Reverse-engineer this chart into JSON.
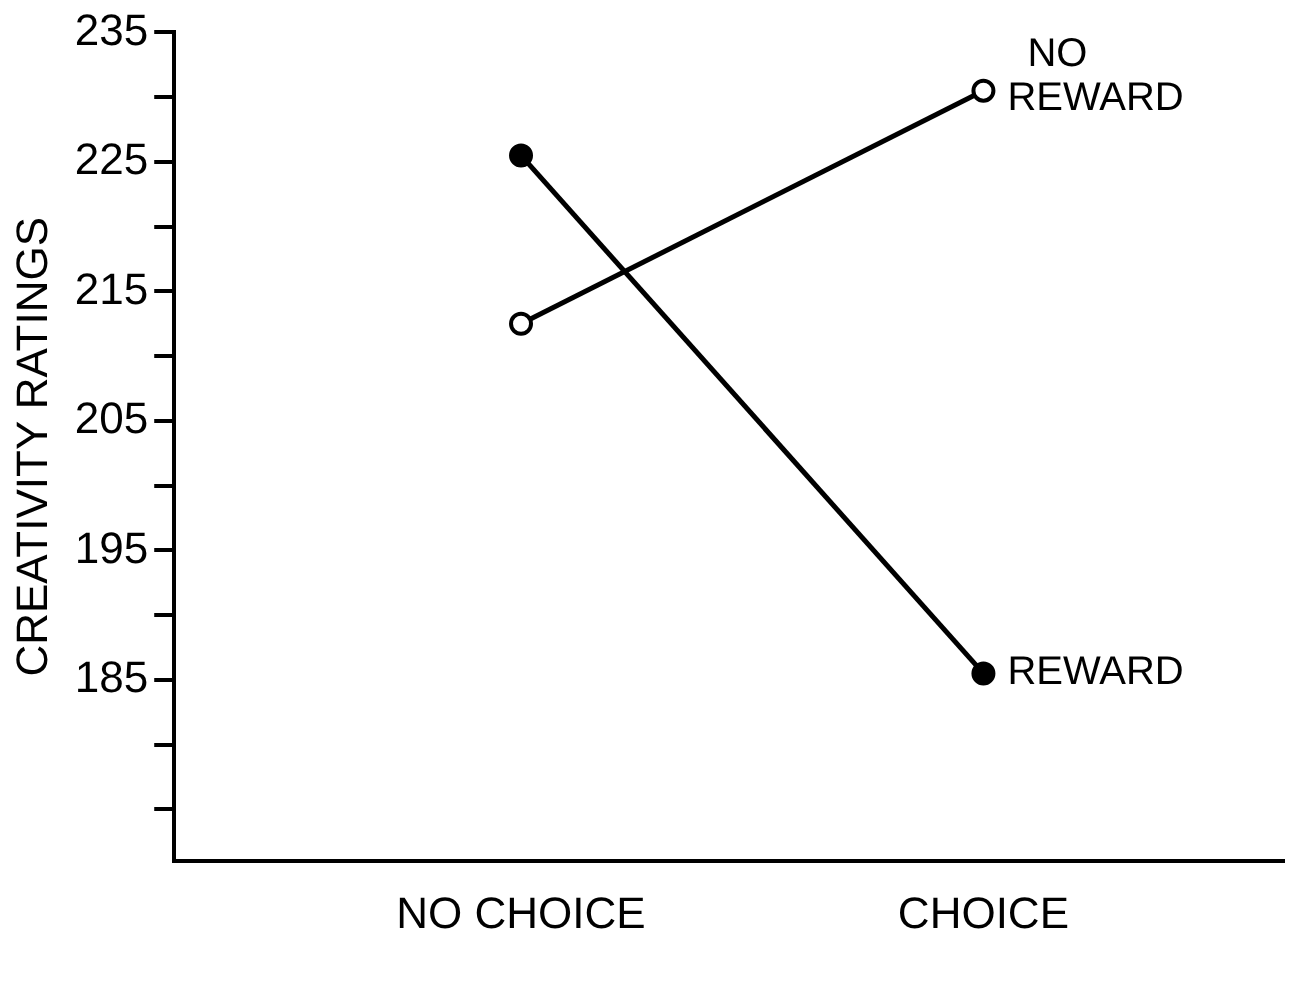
{
  "chart_data": {
    "type": "line",
    "ylabel": "CREATIVITY RATINGS",
    "categories": [
      "NO CHOICE",
      "CHOICE"
    ],
    "series": [
      {
        "name": "REWARD",
        "color": "#000000",
        "values": [
          225.5,
          185.5
        ]
      },
      {
        "name": "NO REWARD",
        "color": "#000000",
        "values": [
          212.5,
          230.5
        ]
      }
    ],
    "ylim": [
      171,
      235
    ],
    "yticks": [
      {
        "value": 175,
        "label": null
      },
      {
        "value": 180,
        "label": null
      },
      185,
      {
        "value": 190,
        "label": null
      },
      195,
      {
        "value": 200,
        "label": null
      },
      205,
      {
        "value": 210,
        "label": null
      },
      215,
      {
        "value": 220,
        "label": null
      },
      225,
      {
        "value": 230,
        "label": null
      },
      235
    ],
    "grid": false,
    "legend": false,
    "marker": "circle",
    "line_style": "solid"
  }
}
